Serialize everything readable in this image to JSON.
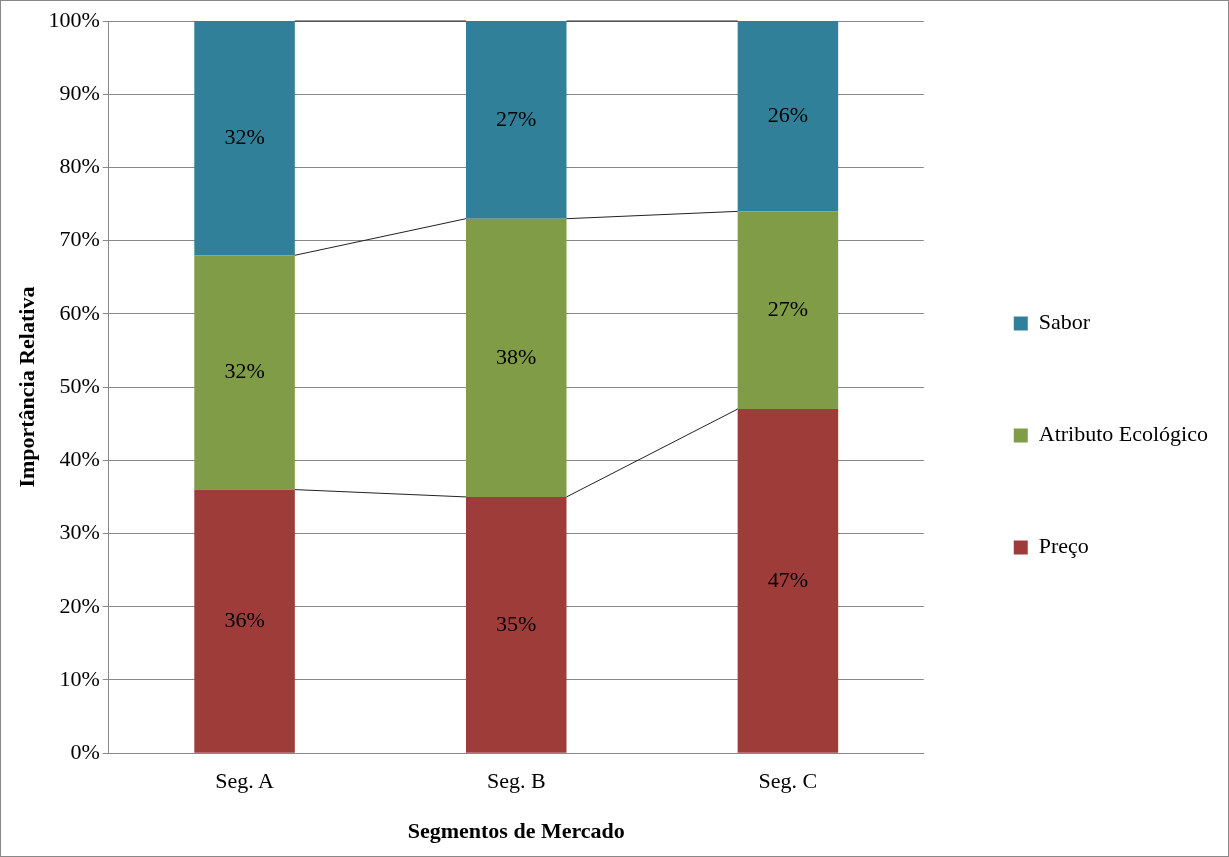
{
  "chart_data": {
    "type": "bar",
    "stacked": true,
    "xlabel": "Segmentos de Mercado",
    "ylabel": "Importância Relativa",
    "categories": [
      "Seg. A",
      "Seg. B",
      "Seg. C"
    ],
    "series": [
      {
        "name": "Preço",
        "color": "#9e3c3a",
        "values": [
          36,
          35,
          47
        ],
        "value_labels": [
          "36%",
          "35%",
          "47%"
        ]
      },
      {
        "name": "Atributo Ecológico",
        "color": "#809c46",
        "values": [
          32,
          38,
          27
        ],
        "value_labels": [
          "32%",
          "38%",
          "27%"
        ]
      },
      {
        "name": "Sabor",
        "color": "#31809a",
        "values": [
          32,
          27,
          26
        ],
        "value_labels": [
          "32%",
          "27%",
          "26%"
        ]
      }
    ],
    "ylim": [
      0,
      100
    ],
    "yticks": [
      {
        "value": 0,
        "label": "0%"
      },
      {
        "value": 10,
        "label": "10%"
      },
      {
        "value": 20,
        "label": "20%"
      },
      {
        "value": 30,
        "label": "30%"
      },
      {
        "value": 40,
        "label": "40%"
      },
      {
        "value": 50,
        "label": "50%"
      },
      {
        "value": 60,
        "label": "60%"
      },
      {
        "value": 70,
        "label": "70%"
      },
      {
        "value": 80,
        "label": "80%"
      },
      {
        "value": 90,
        "label": "90%"
      },
      {
        "value": 100,
        "label": "100%"
      }
    ],
    "grid": "y",
    "legend": "right"
  }
}
